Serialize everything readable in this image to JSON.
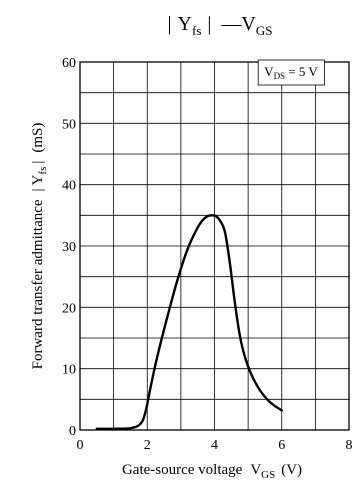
{
  "chart_data": {
    "type": "line",
    "title": "|Yfs| — VGS",
    "title_parts": {
      "bar_left": "|",
      "y": "Y",
      "y_sub": "fs",
      "bar_right": "|",
      "dash": "—",
      "v": "V",
      "v_sub": "GS"
    },
    "xlabel": "Gate-source voltage",
    "xlabel_symbol": {
      "v": "V",
      "sub": "GS",
      "unit": "(V)"
    },
    "ylabel": "Forward transfer admittance",
    "ylabel_symbol": {
      "bar_left": "|",
      "y": "Y",
      "sub": "fs",
      "bar_right": "|",
      "unit": "(mS)"
    },
    "xlim": [
      0,
      8
    ],
    "ylim": [
      0,
      60
    ],
    "x_ticks": [
      0,
      2,
      4,
      6,
      8
    ],
    "y_ticks": [
      0,
      10,
      20,
      30,
      40,
      50,
      60
    ],
    "x_tick_labels": [
      "0",
      "2",
      "4",
      "6",
      "8"
    ],
    "y_tick_labels": [
      "0",
      "10",
      "20",
      "30",
      "40",
      "50",
      "60"
    ],
    "grid": true,
    "annotation": {
      "v": "V",
      "sub": "DS",
      "rest": " = 5 V"
    },
    "series": [
      {
        "points": [
          [
            0.5,
            0.2
          ],
          [
            1.0,
            0.2
          ],
          [
            1.5,
            0.3
          ],
          [
            1.8,
            1.0
          ],
          [
            1.95,
            3.0
          ],
          [
            2.1,
            7.0
          ],
          [
            2.3,
            12.0
          ],
          [
            2.6,
            18.5
          ],
          [
            2.9,
            24.5
          ],
          [
            3.2,
            29.5
          ],
          [
            3.5,
            33.0
          ],
          [
            3.7,
            34.5
          ],
          [
            3.9,
            35.0
          ],
          [
            4.1,
            34.6
          ],
          [
            4.3,
            32.5
          ],
          [
            4.45,
            27.5
          ],
          [
            4.6,
            21.0
          ],
          [
            4.75,
            15.5
          ],
          [
            4.9,
            12.0
          ],
          [
            5.1,
            9.0
          ],
          [
            5.35,
            6.5
          ],
          [
            5.6,
            4.8
          ],
          [
            5.8,
            3.9
          ],
          [
            6.0,
            3.2
          ]
        ]
      }
    ],
    "colors": {
      "line": "#000000",
      "grid": "#000000",
      "background": "#ffffff"
    }
  }
}
